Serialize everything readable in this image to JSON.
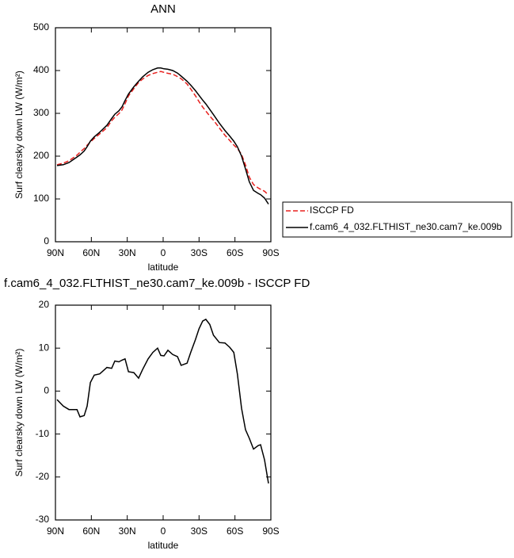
{
  "chart_data": [
    {
      "type": "line",
      "title": "ANN",
      "xlabel": "latitude",
      "ylabel": "Surf clearsky down LW (W/m²)",
      "x": [
        88.7,
        83.4,
        78.7,
        72,
        69.5,
        66,
        63.5,
        60.8,
        57.6,
        53,
        47,
        43,
        40.4,
        37,
        34.4,
        31.8,
        29,
        24.5,
        20.5,
        17.2,
        12.6,
        8.6,
        4.6,
        2,
        -0.7,
        -4,
        -8,
        -12,
        -15,
        -20,
        -23,
        -27,
        -30,
        -33,
        -35.7,
        -39,
        -42,
        -47,
        -51.6,
        -55.6,
        -59,
        -62,
        -65.5,
        -68.8,
        -72,
        -75.5,
        -79.4,
        -81.4,
        -84.7,
        -88
      ],
      "series": [
        {
          "name": "ISCCP FD",
          "color": "#e8201e",
          "dash": true,
          "values": [
            180,
            183.5,
            189.3,
            202.3,
            209,
            217.7,
            225.5,
            233,
            241.3,
            252,
            266.5,
            282.7,
            291,
            299.2,
            307.8,
            322.5,
            340.5,
            357.7,
            372,
            380,
            388.5,
            393,
            396,
            397.7,
            395.8,
            393.5,
            391.5,
            386,
            381,
            368.5,
            357,
            341,
            327.5,
            314.7,
            305.3,
            293.5,
            284,
            265.7,
            248.8,
            236.8,
            226,
            218,
            204,
            179,
            151,
            133.5,
            125.7,
            122.5,
            118,
            109.5
          ]
        },
        {
          "name": "f.cam6_4_032.FLTHIST_ne30.cam7_ke.009b",
          "color": "#000000",
          "dash": false,
          "values": [
            178,
            180,
            185,
            198,
            203,
            212,
            222,
            235,
            245,
            256,
            272,
            288,
            298,
            306,
            315,
            330,
            345,
            362,
            375,
            385,
            396,
            402,
            406,
            406,
            404,
            403,
            400,
            394,
            387,
            375,
            366,
            353,
            342,
            331,
            322,
            309,
            297,
            277,
            260,
            247,
            235,
            222,
            200,
            170,
            140,
            120,
            113,
            110,
            102,
            88
          ]
        }
      ],
      "xlim": [
        90,
        -90
      ],
      "xticks": [
        {
          "value": 90,
          "label": "90N"
        },
        {
          "value": 60,
          "label": "60N"
        },
        {
          "value": 30,
          "label": "30N"
        },
        0,
        {
          "value": -30,
          "label": "30S"
        },
        {
          "value": -60,
          "label": "60S"
        },
        {
          "value": -90,
          "label": "90S"
        }
      ],
      "ylim": [
        0,
        500
      ],
      "yticks": [
        0,
        100,
        200,
        300,
        400,
        500
      ],
      "legend": "right"
    },
    {
      "type": "line",
      "title": "f.cam6_4_032.FLTHIST_ne30.cam7_ke.009b - ISCCP FD",
      "xlabel": "latitude",
      "ylabel": "Surf clearsky down LW (W/m²)",
      "x": [
        88.7,
        83.4,
        78.7,
        72,
        69.5,
        66,
        63.5,
        60.8,
        57.6,
        53,
        47,
        43,
        40.4,
        37,
        34.4,
        31.8,
        29,
        24.5,
        20.5,
        17.2,
        12.6,
        8.6,
        4.6,
        2,
        -0.7,
        -4,
        -8,
        -12,
        -15,
        -20,
        -23,
        -27,
        -30,
        -33,
        -35.7,
        -39,
        -42,
        -47,
        -51.6,
        -55.6,
        -59,
        -62,
        -65.5,
        -68.8,
        -72,
        -75.5,
        -79.4,
        -81.4,
        -84.7,
        -88
      ],
      "color": "#000000",
      "values": [
        -2,
        -3.5,
        -4.3,
        -4.3,
        -6,
        -5.7,
        -3.5,
        2,
        3.7,
        4,
        5.5,
        5.3,
        7,
        6.8,
        7.2,
        7.5,
        4.5,
        4.3,
        3,
        5,
        7.5,
        9,
        10,
        8.3,
        8.2,
        9.5,
        8.5,
        8,
        6,
        6.5,
        9,
        12,
        14.5,
        16.3,
        16.7,
        15.5,
        13,
        11.3,
        11.2,
        10.2,
        9,
        4,
        -4,
        -9,
        -11,
        -13.5,
        -12.7,
        -12.5,
        -16,
        -21.5
      ],
      "xlim": [
        90,
        -90
      ],
      "xticks": [
        {
          "value": 90,
          "label": "90N"
        },
        {
          "value": 60,
          "label": "60N"
        },
        {
          "value": 30,
          "label": "30N"
        },
        0,
        {
          "value": -30,
          "label": "30S"
        },
        {
          "value": -60,
          "label": "60S"
        },
        {
          "value": -90,
          "label": "90S"
        }
      ],
      "ylim": [
        -30,
        20
      ],
      "yticks": [
        -30,
        -20,
        -10,
        0,
        10,
        20
      ]
    }
  ]
}
